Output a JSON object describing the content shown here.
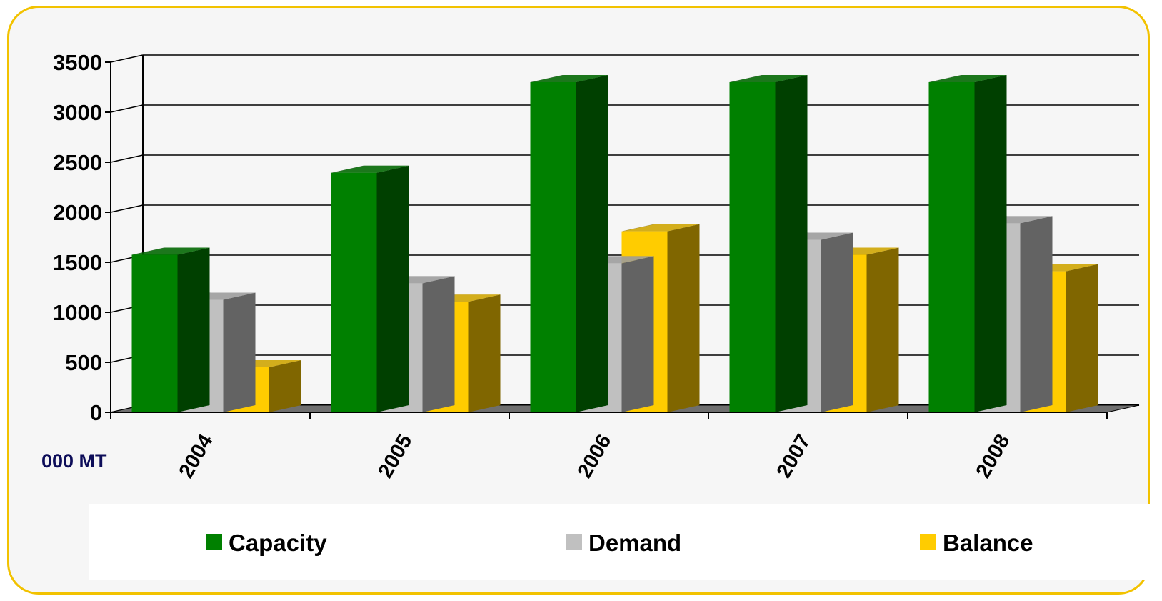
{
  "chart_data": {
    "type": "bar",
    "unit_label": "000 MT",
    "categories": [
      "2004",
      "2005",
      "2006",
      "2007",
      "2008"
    ],
    "series": [
      {
        "name": "Capacity",
        "color": "#008000",
        "side_color": "#004000",
        "values": [
          1575,
          2395,
          3300,
          3300,
          3300
        ]
      },
      {
        "name": "Demand",
        "color": "#c0c0c0",
        "side_color": "#636363",
        "values": [
          1125,
          1290,
          1490,
          1725,
          1890
        ]
      },
      {
        "name": "Balance",
        "color": "#ffcc00",
        "side_color": "#806600",
        "values": [
          450,
          1105,
          1810,
          1575,
          1410
        ]
      }
    ],
    "ylim": [
      0,
      3500
    ],
    "yticks": [
      "0",
      "500",
      "1000",
      "1500",
      "2000",
      "2500",
      "3000",
      "3500"
    ],
    "grid": true,
    "legend_position": "bottom"
  }
}
